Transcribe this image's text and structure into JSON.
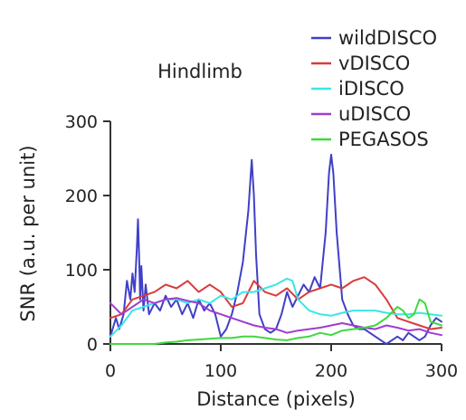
{
  "chart_data": {
    "type": "line",
    "title": "Hindlimb",
    "xlabel": "Distance (pixels)",
    "ylabel": "SNR (a.u. per unit)",
    "xlim": [
      0,
      300
    ],
    "ylim": [
      0,
      300
    ],
    "xticks": [
      "0",
      "100",
      "200",
      "300"
    ],
    "yticks": [
      "0",
      "100",
      "200",
      "300"
    ],
    "grid": false,
    "legend_position": "top-right",
    "series": [
      {
        "name": "wildDISCO",
        "color": "#4040c8",
        "x": [
          0,
          5,
          8,
          12,
          15,
          18,
          20,
          22,
          24,
          25,
          26,
          27,
          28,
          30,
          32,
          35,
          40,
          45,
          50,
          55,
          60,
          65,
          70,
          75,
          80,
          85,
          90,
          95,
          100,
          105,
          110,
          115,
          120,
          125,
          128,
          130,
          132,
          135,
          140,
          145,
          150,
          155,
          160,
          165,
          170,
          175,
          180,
          185,
          190,
          195,
          198,
          200,
          202,
          205,
          210,
          215,
          220,
          225,
          230,
          235,
          240,
          245,
          250,
          255,
          260,
          265,
          270,
          275,
          280,
          285,
          290,
          295,
          300
        ],
        "y": [
          10,
          35,
          20,
          40,
          85,
          60,
          95,
          70,
          130,
          168,
          120,
          60,
          105,
          45,
          80,
          40,
          55,
          45,
          65,
          50,
          60,
          40,
          55,
          35,
          60,
          45,
          55,
          40,
          10,
          20,
          40,
          70,
          110,
          180,
          248,
          200,
          120,
          40,
          20,
          15,
          20,
          40,
          70,
          50,
          65,
          80,
          70,
          90,
          75,
          150,
          230,
          255,
          230,
          150,
          60,
          40,
          25,
          20,
          20,
          15,
          10,
          5,
          0,
          5,
          10,
          5,
          15,
          10,
          5,
          10,
          25,
          35,
          30
        ]
      },
      {
        "name": "vDISCO",
        "color": "#d83b3b",
        "x": [
          0,
          10,
          20,
          30,
          40,
          50,
          60,
          70,
          80,
          90,
          100,
          110,
          120,
          130,
          140,
          150,
          160,
          170,
          180,
          190,
          200,
          210,
          220,
          230,
          240,
          250,
          260,
          270,
          280,
          290,
          300
        ],
        "y": [
          35,
          40,
          60,
          65,
          70,
          80,
          75,
          85,
          70,
          80,
          70,
          50,
          55,
          85,
          70,
          65,
          75,
          60,
          70,
          75,
          80,
          75,
          85,
          90,
          80,
          60,
          35,
          30,
          25,
          20,
          22
        ]
      },
      {
        "name": "iDISCO",
        "color": "#3be6e6",
        "x": [
          0,
          10,
          20,
          30,
          40,
          50,
          60,
          70,
          80,
          90,
          100,
          110,
          120,
          130,
          140,
          150,
          160,
          165,
          170,
          180,
          190,
          200,
          210,
          220,
          230,
          240,
          250,
          260,
          270,
          280,
          290,
          300
        ],
        "y": [
          10,
          25,
          45,
          50,
          55,
          60,
          60,
          55,
          60,
          55,
          65,
          60,
          70,
          70,
          75,
          80,
          88,
          85,
          60,
          45,
          40,
          38,
          42,
          45,
          45,
          45,
          42,
          40,
          40,
          42,
          40,
          38
        ]
      },
      {
        "name": "uDISCO",
        "color": "#a03cd0",
        "x": [
          0,
          10,
          20,
          30,
          40,
          50,
          60,
          70,
          80,
          90,
          100,
          110,
          120,
          130,
          140,
          150,
          160,
          170,
          180,
          190,
          200,
          210,
          220,
          230,
          240,
          250,
          260,
          270,
          280,
          290,
          300
        ],
        "y": [
          55,
          40,
          50,
          60,
          55,
          60,
          62,
          58,
          55,
          45,
          40,
          35,
          30,
          25,
          22,
          20,
          15,
          18,
          20,
          22,
          25,
          28,
          25,
          22,
          20,
          25,
          22,
          18,
          20,
          15,
          12
        ]
      },
      {
        "name": "PEGASOS",
        "color": "#3fd83f",
        "x": [
          0,
          10,
          20,
          30,
          40,
          50,
          60,
          70,
          80,
          90,
          100,
          110,
          120,
          130,
          140,
          150,
          160,
          170,
          180,
          190,
          200,
          210,
          220,
          230,
          240,
          250,
          260,
          265,
          270,
          275,
          280,
          285,
          290,
          300
        ],
        "y": [
          0,
          0,
          0,
          0,
          0,
          2,
          3,
          5,
          6,
          7,
          8,
          8,
          10,
          10,
          8,
          6,
          5,
          8,
          10,
          15,
          12,
          18,
          20,
          22,
          25,
          35,
          50,
          45,
          35,
          40,
          60,
          55,
          30,
          25
        ]
      }
    ]
  }
}
